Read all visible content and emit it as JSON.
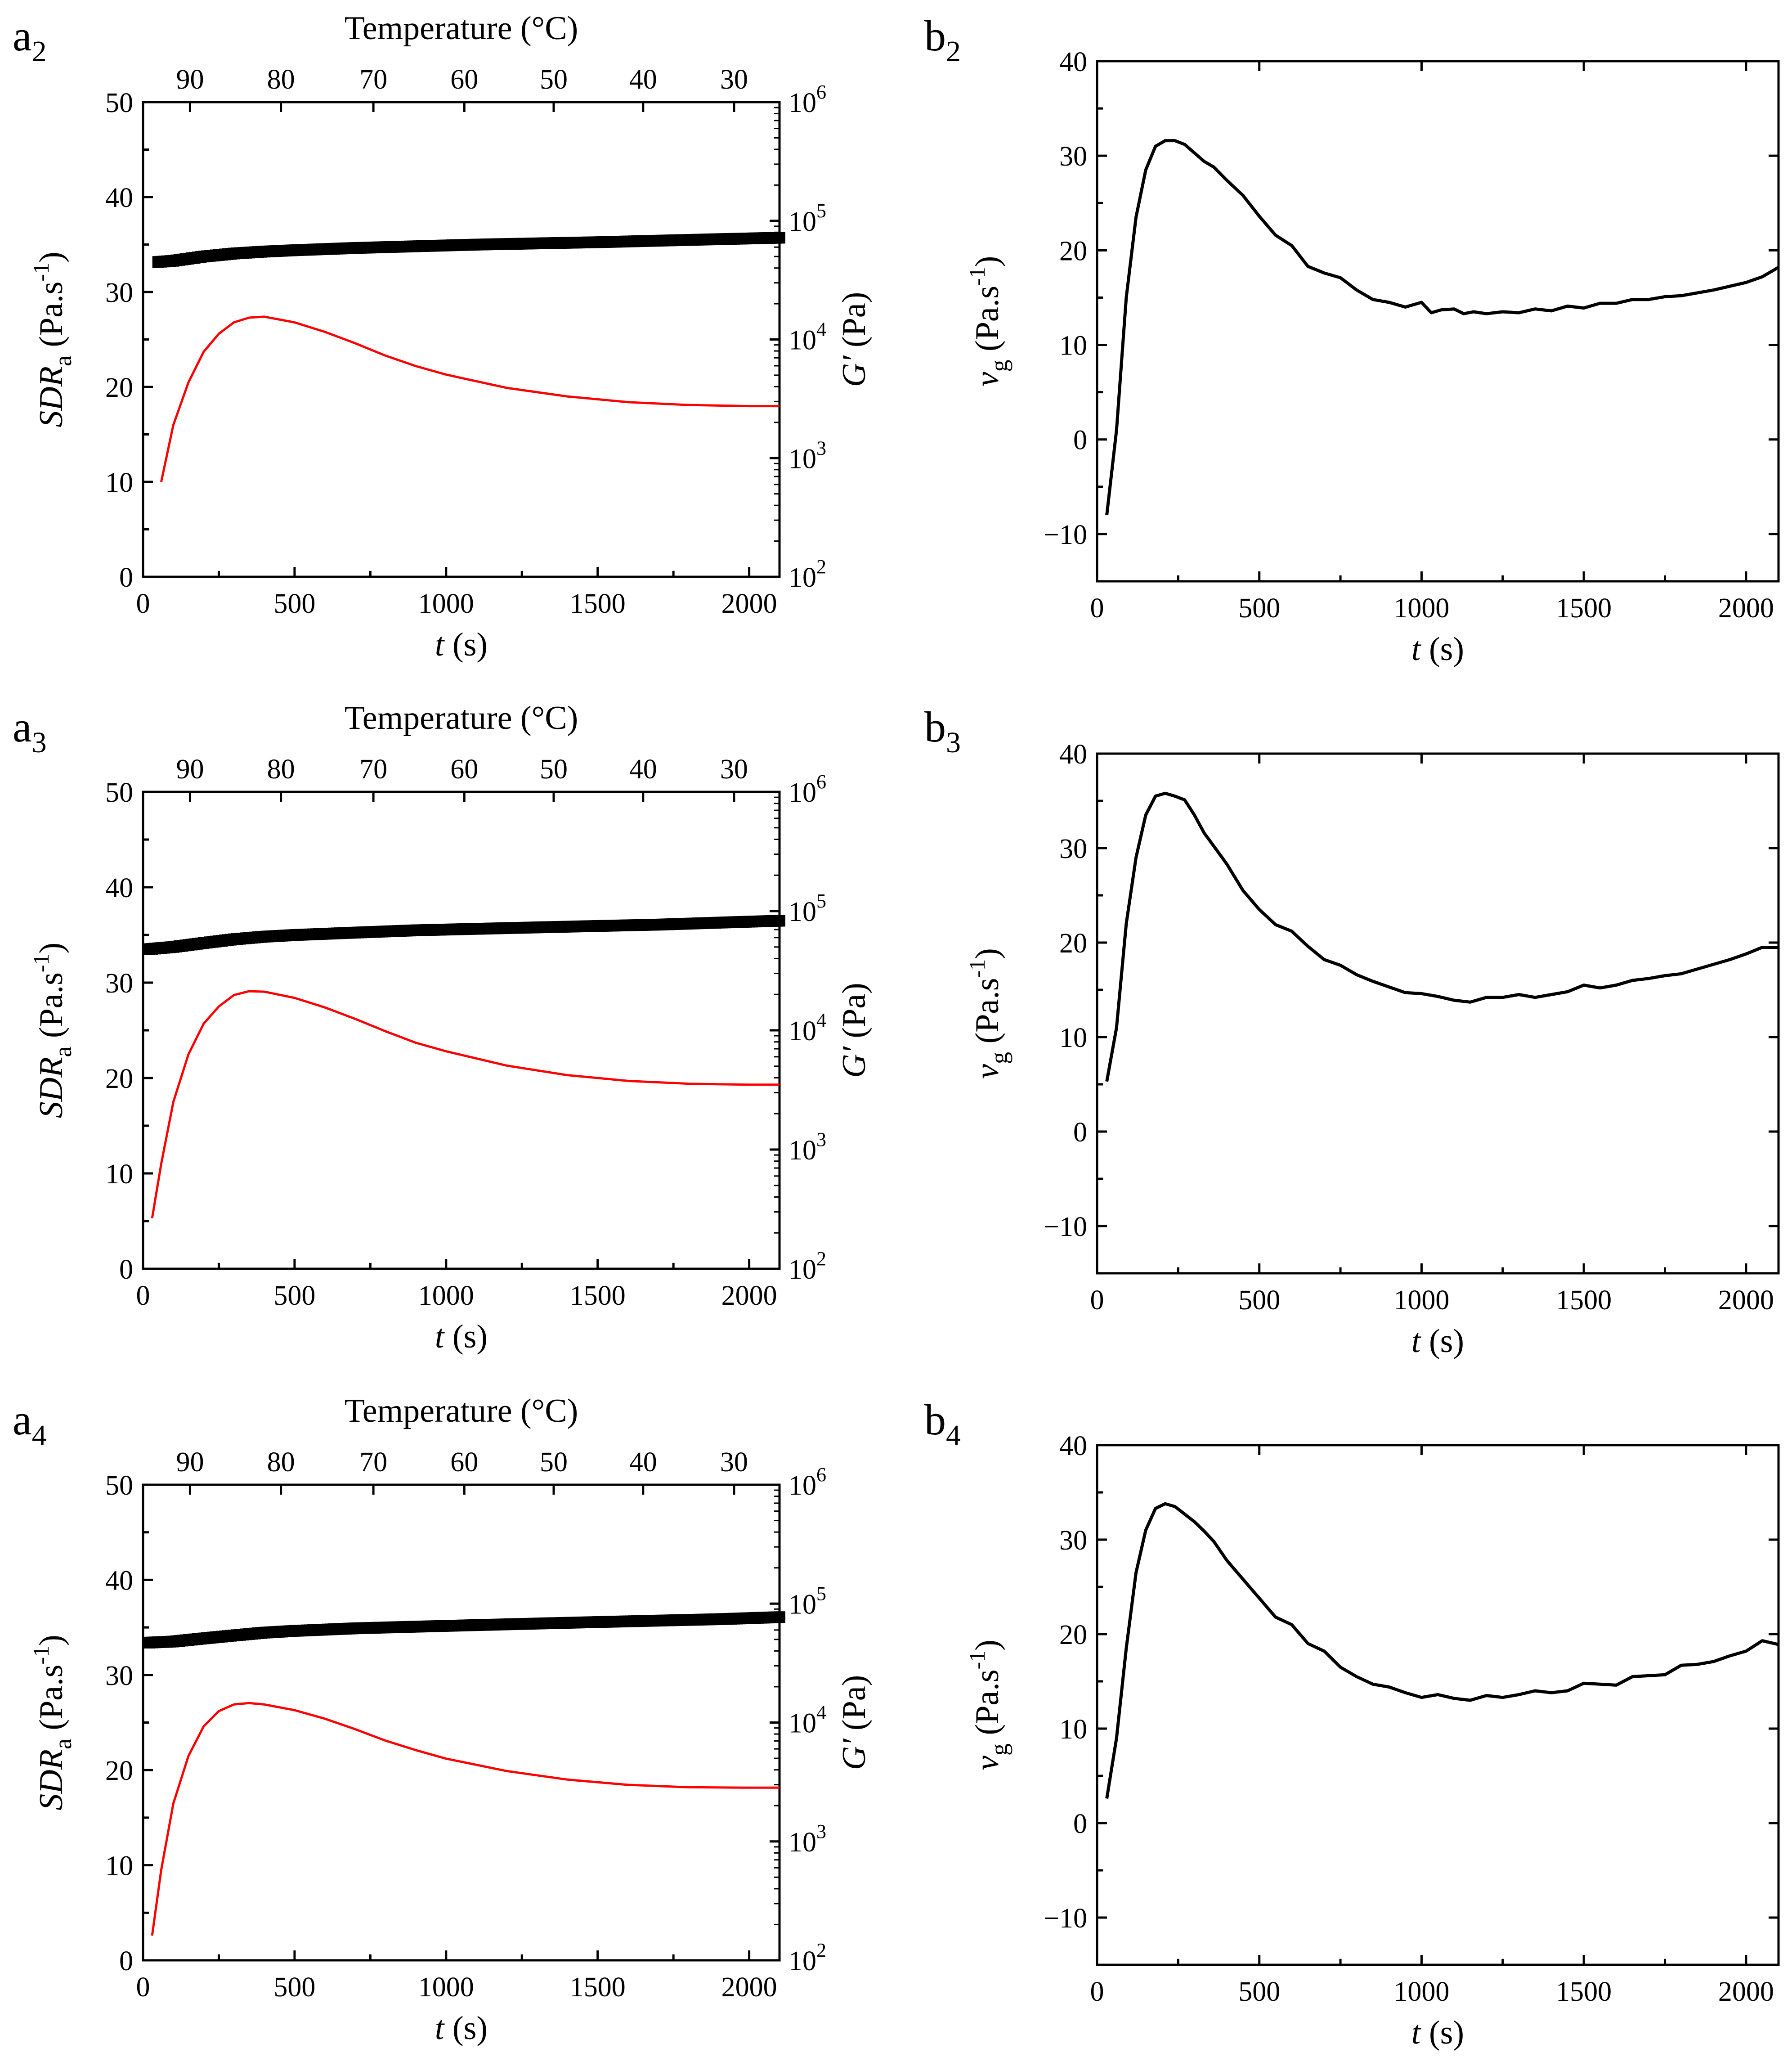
{
  "chart_data": [
    {
      "type": "line",
      "panel_label": "a",
      "panel_sub": "2",
      "xlabel_italic": "t",
      "xlabel_unit": " (s)",
      "xlim": [
        0,
        2100
      ],
      "xticks": [
        "0",
        "500",
        "1000",
        "1500",
        "2000"
      ],
      "top_axis_label": "Temperature (°C)",
      "top_ticks": [
        "90",
        "80",
        "70",
        "60",
        "50",
        "40",
        "30"
      ],
      "top_ticks_t": [
        155,
        455,
        760,
        1060,
        1355,
        1650,
        1950
      ],
      "ylabel_left_italic": "SDR",
      "ylabel_left_sub": "a",
      "ylabel_left_unit": " (Pa.s",
      "ylabel_left_sup": "-1",
      "ylabel_left_close": ")",
      "ylim_left": [
        0,
        50
      ],
      "yticks_left": [
        "0",
        "10",
        "20",
        "30",
        "40",
        "50"
      ],
      "ylabel_right_italic": "G′",
      "ylabel_right_unit": " (Pa)",
      "ylim_right_log10": [
        2,
        6
      ],
      "yticks_right_base": "10",
      "yticks_right_exp": [
        "2",
        "3",
        "4",
        "5",
        "6"
      ],
      "series": [
        {
          "axis": "right",
          "style": "square-markers",
          "color": "#000000",
          "x": [
            50,
            100,
            200,
            300,
            400,
            500,
            700,
            900,
            1100,
            1300,
            1500,
            1700,
            1900,
            2100
          ],
          "y": [
            45000,
            46000,
            50000,
            53000,
            55000,
            56500,
            59000,
            61000,
            63000,
            64500,
            66000,
            68000,
            70000,
            72000
          ]
        },
        {
          "axis": "left",
          "style": "line",
          "color": "#ff0000",
          "x": [
            60,
            100,
            150,
            200,
            250,
            300,
            350,
            400,
            500,
            600,
            700,
            800,
            900,
            1000,
            1200,
            1400,
            1600,
            1800,
            2000,
            2100
          ],
          "y": [
            10,
            16,
            20.5,
            23.7,
            25.6,
            26.8,
            27.3,
            27.4,
            26.8,
            25.8,
            24.6,
            23.3,
            22.2,
            21.3,
            19.9,
            19.0,
            18.4,
            18.1,
            17.98,
            17.98
          ]
        }
      ]
    },
    {
      "type": "line",
      "panel_label": "b",
      "panel_sub": "2",
      "xlabel_italic": "t",
      "xlabel_unit": " (s)",
      "xlim": [
        0,
        2100
      ],
      "xticks": [
        "0",
        "500",
        "1000",
        "1500",
        "2000"
      ],
      "ylabel_italic": "v",
      "ylabel_sub": "g",
      "ylabel_unit": " (Pa.s",
      "ylabel_sup": "-1",
      "ylabel_close": ")",
      "ylim": [
        -15,
        40
      ],
      "yticks": [
        "-10",
        "0",
        "10",
        "20",
        "30",
        "40"
      ],
      "series": [
        {
          "color": "#000000",
          "x": [
            30,
            60,
            90,
            120,
            150,
            180,
            210,
            240,
            270,
            300,
            330,
            360,
            400,
            450,
            500,
            550,
            600,
            650,
            700,
            750,
            800,
            850,
            900,
            950,
            1000,
            1030,
            1060,
            1100,
            1130,
            1160,
            1200,
            1250,
            1300,
            1350,
            1400,
            1450,
            1500,
            1550,
            1600,
            1650,
            1700,
            1750,
            1800,
            1850,
            1900,
            1950,
            2000,
            2050,
            2100
          ],
          "y": [
            -8,
            1,
            15,
            23.5,
            28.5,
            31,
            31.6,
            31.6,
            31.2,
            30.3,
            29.4,
            28.8,
            27.4,
            25.8,
            23.6,
            21.6,
            20.5,
            18.3,
            17.6,
            17.1,
            15.8,
            14.8,
            14.5,
            14.0,
            14.5,
            13.4,
            13.7,
            13.8,
            13.3,
            13.5,
            13.3,
            13.5,
            13.4,
            13.8,
            13.6,
            14.1,
            13.9,
            14.4,
            14.4,
            14.8,
            14.8,
            15.1,
            15.2,
            15.5,
            15.8,
            16.2,
            16.6,
            17.2,
            18.2
          ]
        }
      ]
    },
    {
      "type": "line",
      "panel_label": "a",
      "panel_sub": "3",
      "xlabel_italic": "t",
      "xlabel_unit": " (s)",
      "xlim": [
        0,
        2100
      ],
      "xticks": [
        "0",
        "500",
        "1000",
        "1500",
        "2000"
      ],
      "top_axis_label": "Temperature (°C)",
      "top_ticks": [
        "90",
        "80",
        "70",
        "60",
        "50",
        "40",
        "30"
      ],
      "top_ticks_t": [
        155,
        455,
        760,
        1060,
        1355,
        1650,
        1950
      ],
      "ylabel_left_italic": "SDR",
      "ylabel_left_sub": "a",
      "ylabel_left_unit": " (Pa.s",
      "ylabel_left_sup": "-1",
      "ylabel_left_close": ")",
      "ylim_left": [
        0,
        50
      ],
      "yticks_left": [
        "0",
        "10",
        "20",
        "30",
        "40",
        "50"
      ],
      "ylabel_right_italic": "G′",
      "ylabel_right_unit": " (Pa)",
      "ylim_right_log10": [
        2,
        6
      ],
      "yticks_right_base": "10",
      "yticks_right_exp": [
        "2",
        "3",
        "4",
        "5",
        "6"
      ],
      "series": [
        {
          "axis": "right",
          "style": "square-markers",
          "color": "#000000",
          "x": [
            20,
            100,
            200,
            300,
            400,
            500,
            700,
            900,
            1100,
            1300,
            1500,
            1700,
            1900,
            2100
          ],
          "y": [
            48000,
            50000,
            54000,
            58000,
            61000,
            63000,
            66000,
            69000,
            71000,
            73000,
            75000,
            77000,
            80000,
            83000
          ]
        },
        {
          "axis": "left",
          "style": "line",
          "color": "#ff0000",
          "x": [
            30,
            60,
            100,
            150,
            200,
            250,
            300,
            350,
            400,
            500,
            600,
            700,
            800,
            900,
            1000,
            1200,
            1400,
            1600,
            1800,
            2000,
            2100
          ],
          "y": [
            5.3,
            11,
            17.5,
            22.5,
            25.7,
            27.5,
            28.7,
            29.1,
            29.05,
            28.4,
            27.4,
            26.2,
            24.9,
            23.7,
            22.8,
            21.3,
            20.3,
            19.7,
            19.4,
            19.3,
            19.3
          ]
        }
      ]
    },
    {
      "type": "line",
      "panel_label": "b",
      "panel_sub": "3",
      "xlabel_italic": "t",
      "xlabel_unit": " (s)",
      "xlim": [
        0,
        2100
      ],
      "xticks": [
        "0",
        "500",
        "1000",
        "1500",
        "2000"
      ],
      "ylabel_italic": "v",
      "ylabel_sub": "g",
      "ylabel_unit": " (Pa.s",
      "ylabel_sup": "-1",
      "ylabel_close": ")",
      "ylim": [
        -15,
        40
      ],
      "yticks": [
        "-10",
        "0",
        "10",
        "20",
        "30",
        "40"
      ],
      "series": [
        {
          "color": "#000000",
          "x": [
            30,
            60,
            90,
            120,
            150,
            180,
            210,
            240,
            270,
            300,
            330,
            360,
            400,
            450,
            500,
            550,
            600,
            650,
            700,
            750,
            800,
            850,
            900,
            950,
            1000,
            1050,
            1100,
            1150,
            1200,
            1250,
            1300,
            1350,
            1400,
            1450,
            1500,
            1550,
            1600,
            1650,
            1700,
            1750,
            1800,
            1850,
            1900,
            1950,
            2000,
            2050,
            2100
          ],
          "y": [
            5.3,
            11,
            22,
            29,
            33.5,
            35.5,
            35.8,
            35.5,
            35.1,
            33.5,
            31.6,
            30.2,
            28.3,
            25.5,
            23.5,
            21.9,
            21.2,
            19.6,
            18.2,
            17.6,
            16.6,
            15.9,
            15.3,
            14.7,
            14.6,
            14.3,
            13.9,
            13.7,
            14.2,
            14.2,
            14.5,
            14.2,
            14.5,
            14.8,
            15.5,
            15.2,
            15.5,
            16.0,
            16.2,
            16.5,
            16.7,
            17.2,
            17.7,
            18.2,
            18.8,
            19.5,
            19.5
          ]
        }
      ]
    },
    {
      "type": "line",
      "panel_label": "a",
      "panel_sub": "4",
      "xlabel_italic": "t",
      "xlabel_unit": " (s)",
      "xlim": [
        0,
        2100
      ],
      "xticks": [
        "0",
        "500",
        "1000",
        "1500",
        "2000"
      ],
      "top_axis_label": "Temperature (°C)",
      "top_ticks": [
        "90",
        "80",
        "70",
        "60",
        "50",
        "40",
        "30"
      ],
      "top_ticks_t": [
        155,
        455,
        760,
        1060,
        1355,
        1650,
        1950
      ],
      "ylabel_left_italic": "SDR",
      "ylabel_left_sub": "a",
      "ylabel_left_unit": " (Pa.s",
      "ylabel_left_sup": "-1",
      "ylabel_left_close": ")",
      "ylim_left": [
        0,
        50
      ],
      "yticks_left": [
        "0",
        "10",
        "20",
        "30",
        "40",
        "50"
      ],
      "ylabel_right_italic": "G′",
      "ylabel_right_unit": " (Pa)",
      "ylim_right_log10": [
        2,
        6
      ],
      "yticks_right_base": "10",
      "yticks_right_exp": [
        "2",
        "3",
        "4",
        "5",
        "6"
      ],
      "series": [
        {
          "axis": "right",
          "style": "square-markers",
          "color": "#000000",
          "x": [
            20,
            100,
            200,
            300,
            400,
            500,
            700,
            900,
            1100,
            1300,
            1500,
            1700,
            1900,
            2100
          ],
          "y": [
            47000,
            48000,
            51000,
            54000,
            57000,
            59000,
            62000,
            64000,
            66000,
            68000,
            70000,
            72000,
            74000,
            77000
          ]
        },
        {
          "axis": "left",
          "style": "line",
          "color": "#ff0000",
          "x": [
            30,
            60,
            100,
            150,
            200,
            250,
            300,
            350,
            400,
            500,
            600,
            700,
            800,
            900,
            1000,
            1200,
            1400,
            1600,
            1800,
            2000,
            2100
          ],
          "y": [
            2.6,
            9.5,
            16.5,
            21.5,
            24.6,
            26.2,
            26.9,
            27.05,
            26.9,
            26.3,
            25.4,
            24.3,
            23.1,
            22.1,
            21.2,
            19.9,
            19.0,
            18.45,
            18.2,
            18.15,
            18.15
          ]
        }
      ]
    },
    {
      "type": "line",
      "panel_label": "b",
      "panel_sub": "4",
      "xlabel_italic": "t",
      "xlabel_unit": " (s)",
      "xlim": [
        0,
        2100
      ],
      "xticks": [
        "0",
        "500",
        "1000",
        "1500",
        "2000"
      ],
      "ylabel_italic": "v",
      "ylabel_sub": "g",
      "ylabel_unit": " (Pa.s",
      "ylabel_sup": "-1",
      "ylabel_close": ")",
      "ylim": [
        -15,
        40
      ],
      "yticks": [
        "-10",
        "0",
        "10",
        "20",
        "30",
        "40"
      ],
      "series": [
        {
          "color": "#000000",
          "x": [
            30,
            60,
            90,
            120,
            150,
            180,
            210,
            240,
            270,
            300,
            330,
            360,
            400,
            450,
            500,
            550,
            600,
            650,
            700,
            750,
            800,
            850,
            900,
            950,
            1000,
            1050,
            1100,
            1150,
            1200,
            1250,
            1300,
            1350,
            1400,
            1450,
            1500,
            1550,
            1600,
            1650,
            1700,
            1750,
            1800,
            1850,
            1900,
            1950,
            2000,
            2050,
            2100
          ],
          "y": [
            2.6,
            9,
            18.5,
            26.5,
            31.0,
            33.3,
            33.8,
            33.5,
            32.7,
            31.9,
            30.9,
            29.8,
            27.8,
            25.8,
            23.8,
            21.8,
            21.0,
            19.0,
            18.2,
            16.5,
            15.5,
            14.7,
            14.4,
            13.8,
            13.3,
            13.6,
            13.2,
            13.0,
            13.5,
            13.3,
            13.6,
            14.0,
            13.8,
            14.0,
            14.8,
            14.7,
            14.6,
            15.5,
            15.6,
            15.7,
            16.7,
            16.8,
            17.1,
            17.7,
            18.2,
            19.3,
            18.9
          ]
        }
      ]
    }
  ]
}
